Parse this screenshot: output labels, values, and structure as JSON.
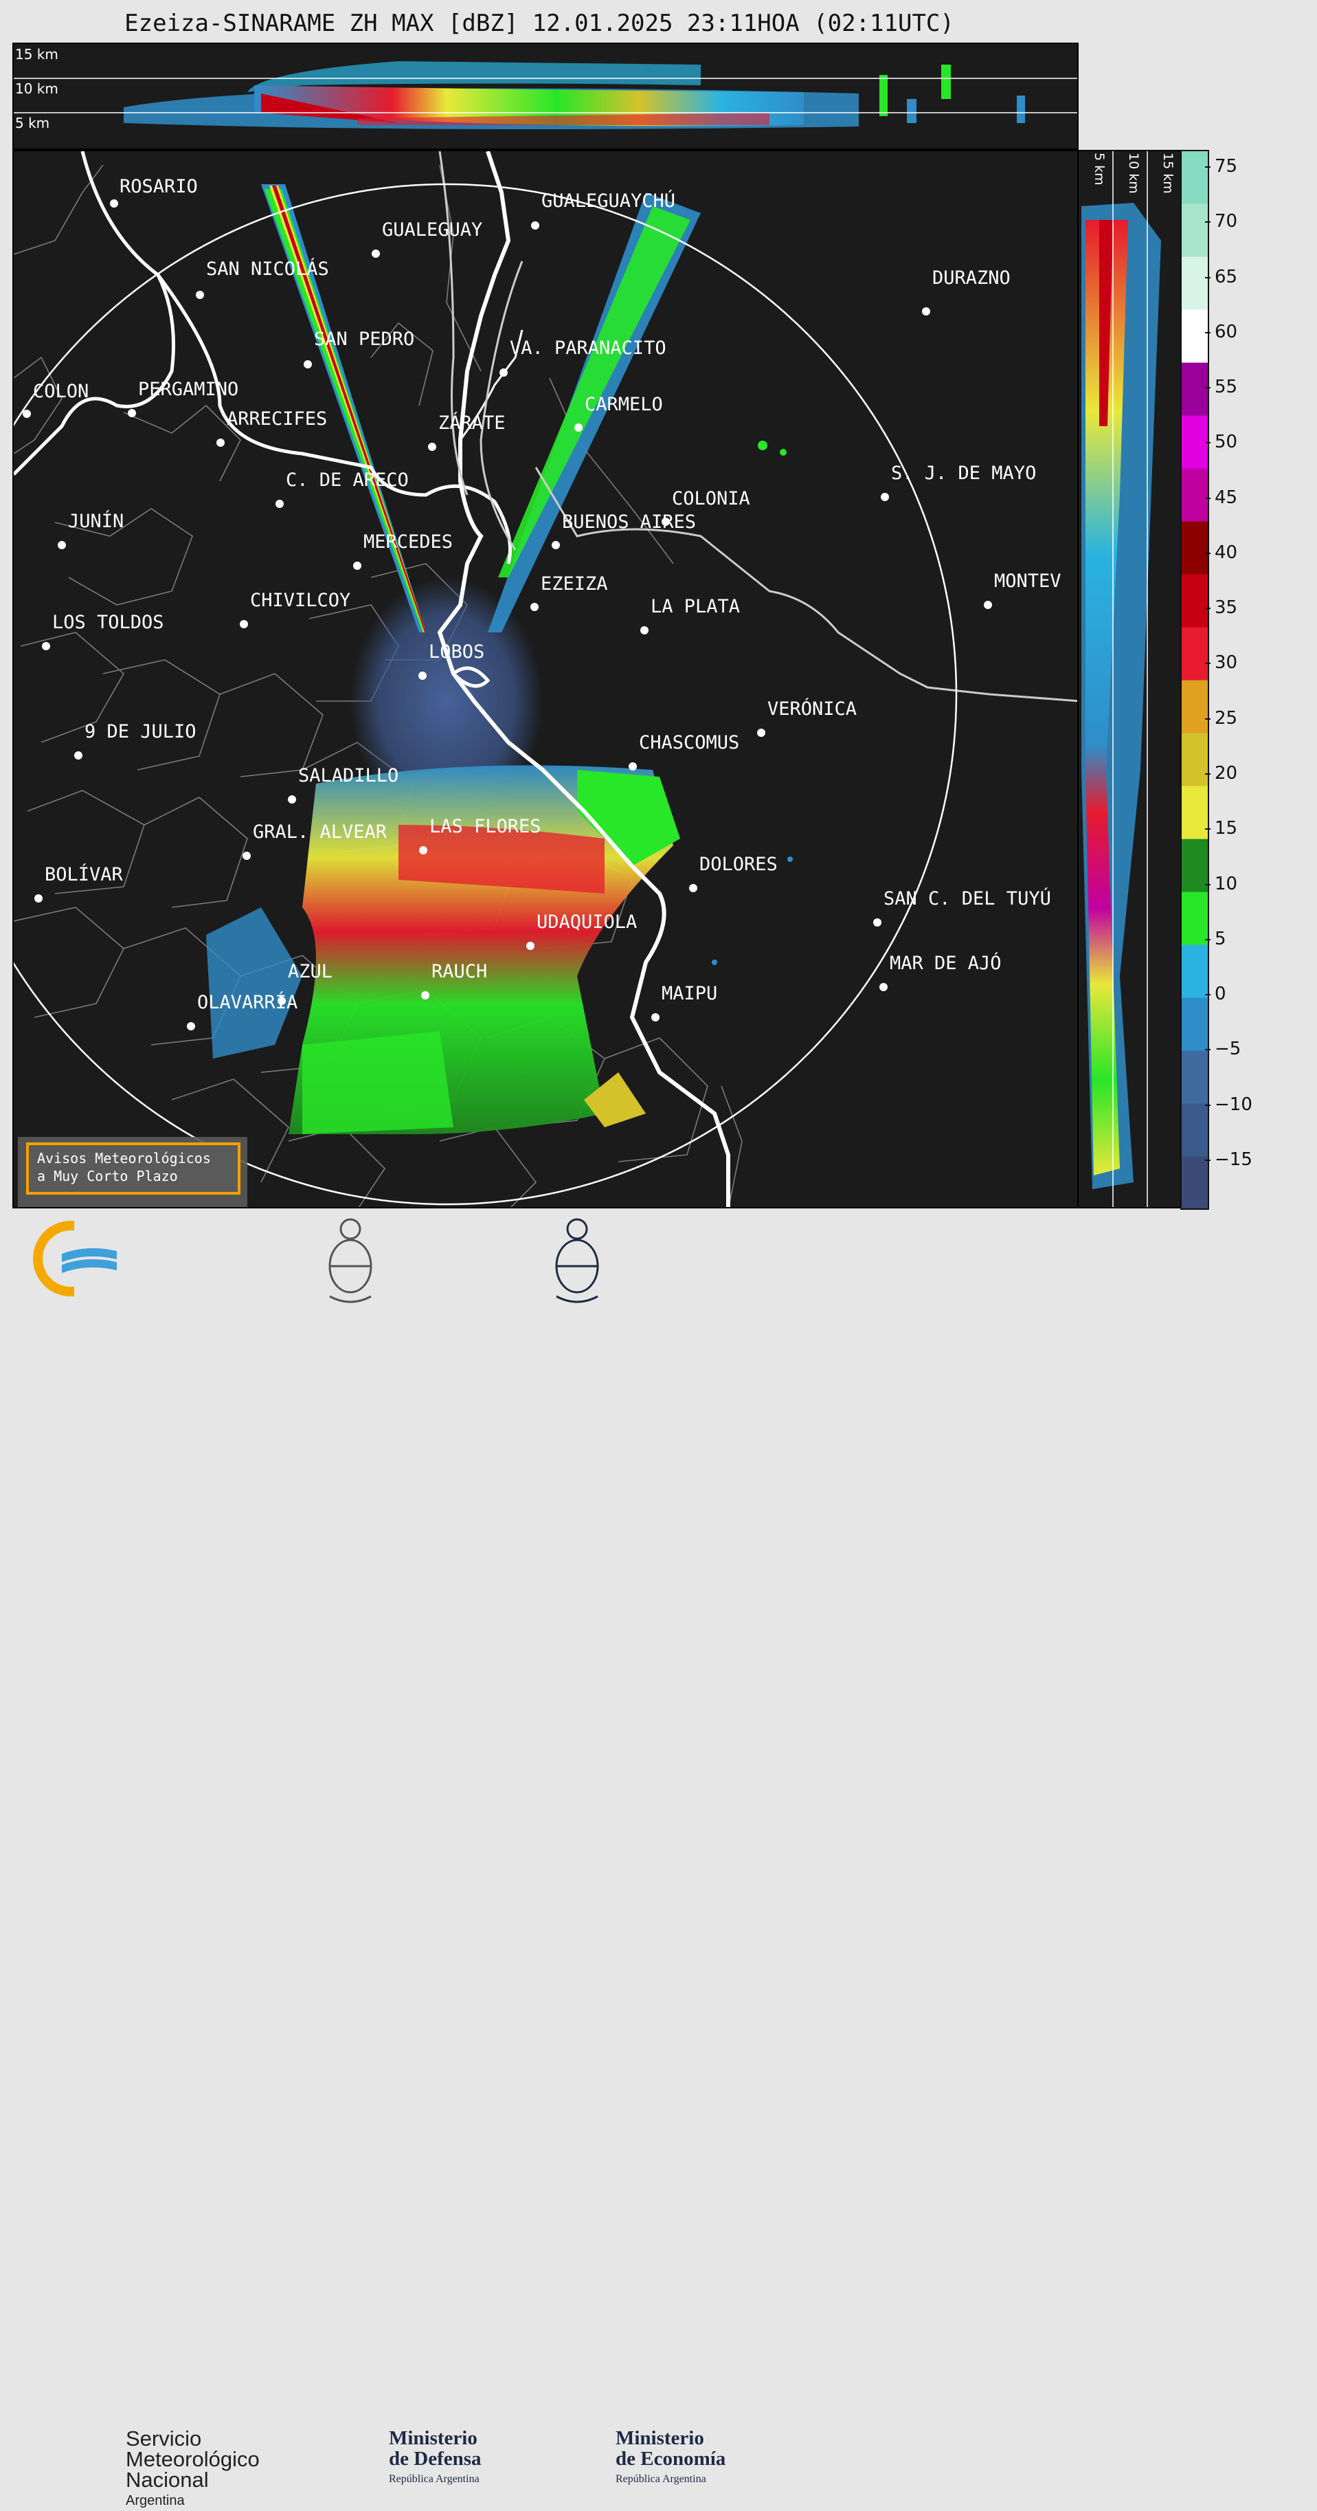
{
  "title": "Ezeiza-SINARAME ZH MAX [dBZ] 12.01.2025 23:11HOA (02:11UTC)",
  "top_section": {
    "height_labels": [
      "15 km",
      "10 km",
      "5 km"
    ]
  },
  "side_section": {
    "height_labels": [
      "5 km",
      "10 km",
      "15 km"
    ]
  },
  "colorbar": {
    "ticks": [
      "75",
      "70",
      "65",
      "60",
      "55",
      "50",
      "45",
      "40",
      "35",
      "30",
      "25",
      "20",
      "15",
      "10",
      "5",
      "0",
      "−5",
      "−10",
      "−15"
    ],
    "colors": [
      "#3c4a78",
      "#3c5a8c",
      "#3f6aa0",
      "#2f8dc8",
      "#2ab3e0",
      "#28e628",
      "#1f8a1f",
      "#e8e83a",
      "#d4c22a",
      "#e0a020",
      "#e61b2e",
      "#c80014",
      "#8c0000",
      "#c000a0",
      "#e000e0",
      "#9a009a",
      "#ffffff",
      "#d8f4e8",
      "#a8e4cc",
      "#86dcc0"
    ]
  },
  "cities": [
    {
      "name": "ROSARIO"
    },
    {
      "name": "GUALEGUAYCHÚ"
    },
    {
      "name": "GUALEGUAY"
    },
    {
      "name": "SAN NICOLÁS"
    },
    {
      "name": "DURAZNO"
    },
    {
      "name": "SAN PEDRO"
    },
    {
      "name": "VA. PARANACITO"
    },
    {
      "name": "COLON"
    },
    {
      "name": "PERGAMINO"
    },
    {
      "name": "CARMELO"
    },
    {
      "name": "ARRECIFES"
    },
    {
      "name": "ZÁRATE"
    },
    {
      "name": "S. J. DE MAYO"
    },
    {
      "name": "C. DE ARECO"
    },
    {
      "name": "COLONIA"
    },
    {
      "name": "JUNÍN"
    },
    {
      "name": "BUENOS AIRES"
    },
    {
      "name": "MERCEDES"
    },
    {
      "name": "EZEIZA"
    },
    {
      "name": "MONTEV"
    },
    {
      "name": "CHIVILCOY"
    },
    {
      "name": "LA PLATA"
    },
    {
      "name": "LOS TOLDOS"
    },
    {
      "name": "LOBOS"
    },
    {
      "name": "VERÓNICA"
    },
    {
      "name": "9 DE JULIO"
    },
    {
      "name": "CHASCOMUS"
    },
    {
      "name": "SALADILLO"
    },
    {
      "name": "GRAL. ALVEAR"
    },
    {
      "name": "LAS FLORES"
    },
    {
      "name": "BOLÍVAR"
    },
    {
      "name": "DOLORES"
    },
    {
      "name": "SAN C. DEL TUYÚ"
    },
    {
      "name": "UDAQUIOLA"
    },
    {
      "name": "MAR DE AJÓ"
    },
    {
      "name": "AZUL"
    },
    {
      "name": "RAUCH"
    },
    {
      "name": "OLAVARRÍA"
    },
    {
      "name": "MAIPU"
    }
  ],
  "alert_box": {
    "line1": "Avisos Meteorológicos",
    "line2": "a Muy Corto Plazo",
    "border_color": "#f5a000"
  },
  "logos": {
    "smn": {
      "line1": "Servicio",
      "line2": "Meteorológico",
      "line3": "Nacional",
      "line4": "Argentina"
    },
    "defensa": {
      "line1": "Ministerio",
      "line2": "de Defensa",
      "line3": "República Argentina"
    },
    "economia": {
      "line1": "Ministerio",
      "line2": "de Economía",
      "line3": "República Argentina"
    }
  }
}
